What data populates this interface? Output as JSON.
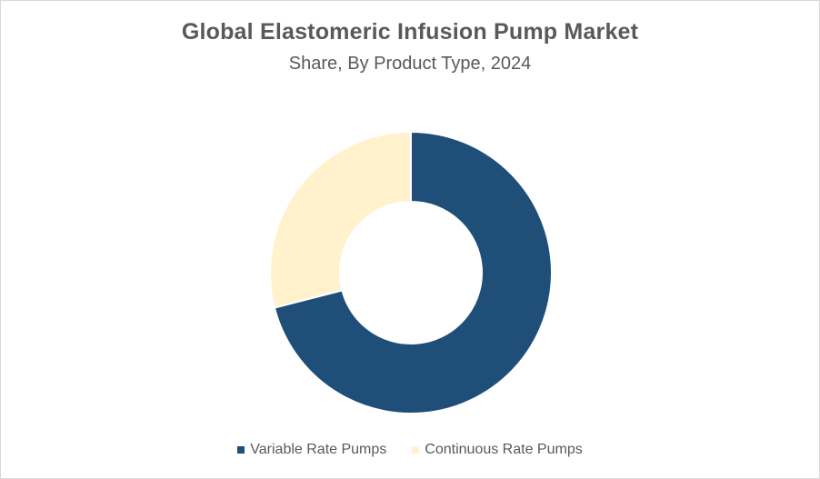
{
  "chart_data": {
    "type": "pie",
    "style": "donut",
    "title": "Global Elastomeric Infusion Pump Market",
    "subtitle": "Share, By Product Type, 2024",
    "categories": [
      "Variable Rate Pumps",
      "Continuous Rate Pumps"
    ],
    "values": [
      71,
      29
    ],
    "colors": [
      "#1f4e79",
      "#fff2cc"
    ],
    "legend": "bottom"
  }
}
